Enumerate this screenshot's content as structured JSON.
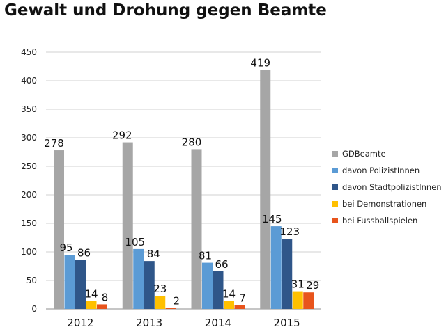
{
  "chart_data": {
    "type": "bar",
    "title": "Gewalt und Drohung gegen Beamte",
    "xlabel": "",
    "ylabel": "",
    "ylim": [
      0,
      450
    ],
    "yticks": [
      0,
      50,
      100,
      150,
      200,
      250,
      300,
      350,
      400,
      450
    ],
    "grid": true,
    "legend_position": "right",
    "categories": [
      "2012",
      "2013",
      "2014",
      "2015"
    ],
    "series": [
      {
        "name": "GDBeamte",
        "color": "#a6a6a6",
        "values": [
          278,
          292,
          280,
          419
        ]
      },
      {
        "name": "davon PolizistInnen",
        "color": "#5b9bd5",
        "values": [
          95,
          105,
          81,
          145
        ]
      },
      {
        "name": "davon StadtpolizistInnen",
        "color": "#2f5689",
        "values": [
          86,
          84,
          66,
          123
        ]
      },
      {
        "name": "bei Demonstrationen",
        "color": "#ffc000",
        "values": [
          14,
          23,
          14,
          31
        ]
      },
      {
        "name": "bei Fussballspielen",
        "color": "#e8541c",
        "values": [
          8,
          2,
          7,
          29
        ]
      }
    ]
  }
}
